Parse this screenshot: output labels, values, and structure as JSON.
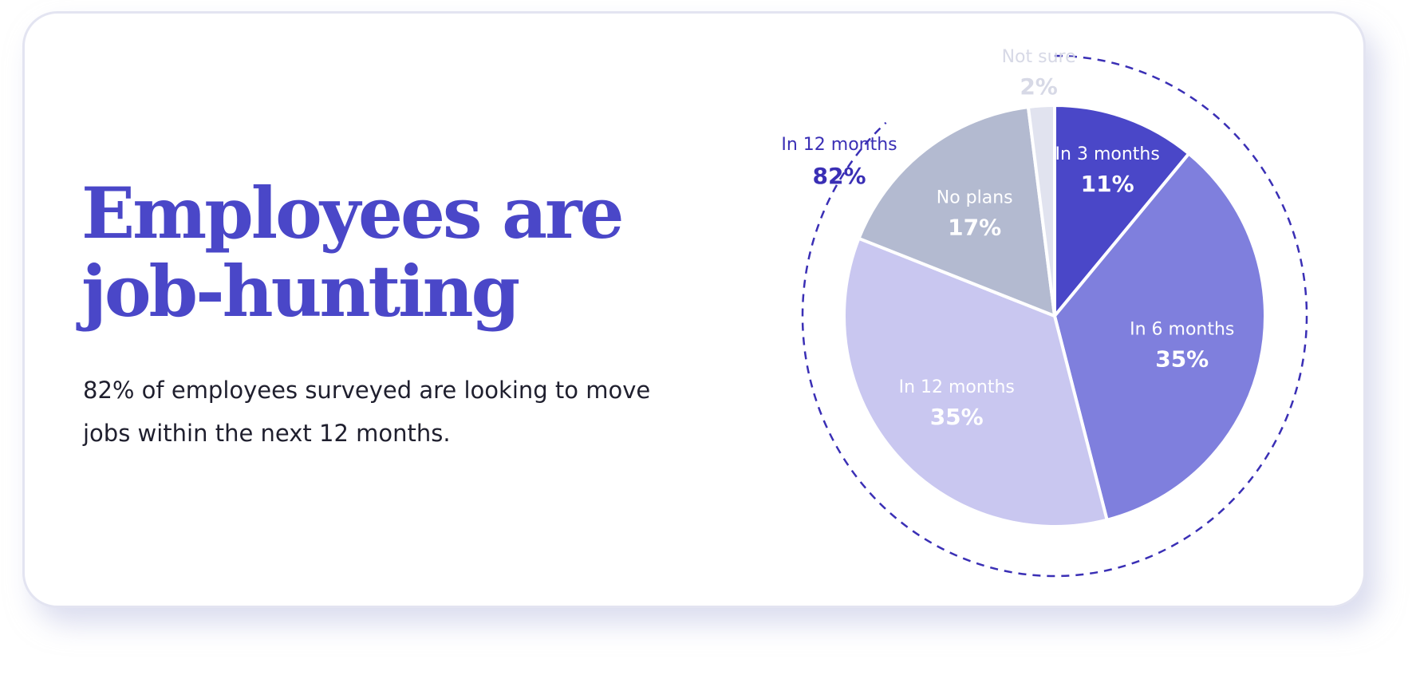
{
  "headline": {
    "line1": "Employees are",
    "line2": "job-hunting"
  },
  "subtext": {
    "line1": "82% of employees surveyed are looking to move",
    "line2": "jobs within the next 12 months."
  },
  "chart_data": {
    "type": "pie",
    "slices": [
      {
        "label": "In 3 months",
        "value": 11,
        "display": "11%",
        "color": "#4a47c8",
        "text_color": "#ffffff"
      },
      {
        "label": "In 6 months",
        "value": 35,
        "display": "35%",
        "color": "#7f7fdd",
        "text_color": "#ffffff"
      },
      {
        "label": "In 12 months",
        "value": 35,
        "display": "35%",
        "color": "#c9c7f0",
        "text_color": "#ffffff"
      },
      {
        "label": "No plans",
        "value": 17,
        "display": "17%",
        "color": "#b3bad0",
        "text_color": "#ffffff"
      },
      {
        "label": "Not sure",
        "value": 2,
        "display": "2%",
        "color": "#e1e3ef",
        "text_color": "#d7d9e6"
      }
    ],
    "group_annotation": {
      "label": "In 12 months",
      "display": "82%",
      "color": "#3a2fb5"
    },
    "start_angle": "12 o'clock",
    "direction": "clockwise"
  }
}
